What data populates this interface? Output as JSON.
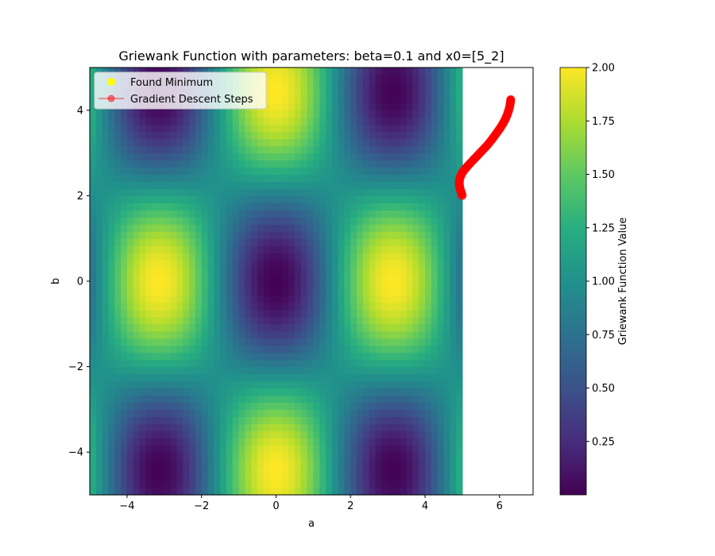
{
  "chart_data": {
    "type": "heatmap",
    "title": "Griewank Function with parameters: beta=0.1 and x0=[5_2]",
    "xlabel": "a",
    "ylabel": "b",
    "xlim": [
      -5,
      6.9
    ],
    "ylim": [
      -5,
      5
    ],
    "heatmap_x_range": [
      -5,
      5
    ],
    "heatmap_y_range": [
      -5,
      5
    ],
    "function": "1 + (a^2 + b^2)/4000 - cos(a)*cos(b/sqrt(2))",
    "colormap": "viridis",
    "x_ticks": [
      -4,
      -2,
      0,
      2,
      4,
      6
    ],
    "x_tick_labels": [
      "−4",
      "−2",
      "0",
      "2",
      "4",
      "6"
    ],
    "y_ticks": [
      -4,
      -2,
      0,
      2,
      4
    ],
    "y_tick_labels": [
      "−4",
      "−2",
      "0",
      "2",
      "4"
    ],
    "colorbar": {
      "label": "Griewank Function Value",
      "range": [
        0,
        2.0
      ],
      "ticks": [
        0.25,
        0.5,
        0.75,
        1.0,
        1.25,
        1.5,
        1.75,
        2.0
      ],
      "tick_labels": [
        "0.25",
        "0.50",
        "0.75",
        "1.00",
        "1.25",
        "1.50",
        "1.75",
        "2.00"
      ]
    },
    "legend": {
      "position": "top-left",
      "entries": [
        {
          "label": "Found Minimum",
          "color": "#ffff00",
          "marker": "o"
        },
        {
          "label": "Gradient Descent Steps",
          "color": "#ff0000",
          "marker": "o-",
          "alpha": 0.5
        }
      ]
    },
    "gradient_descent_steps": {
      "x": [
        5.0,
        4.97,
        4.94,
        4.92,
        4.92,
        4.95,
        5.0,
        5.08,
        5.18,
        5.3,
        5.42,
        5.55,
        5.68,
        5.8,
        5.9,
        6.0,
        6.08,
        6.15,
        6.2,
        6.24,
        6.27,
        6.29,
        6.3
      ],
      "y": [
        2.0,
        2.08,
        2.16,
        2.25,
        2.35,
        2.45,
        2.54,
        2.63,
        2.73,
        2.84,
        2.95,
        3.07,
        3.19,
        3.32,
        3.44,
        3.56,
        3.67,
        3.78,
        3.88,
        3.98,
        4.08,
        4.17,
        4.25
      ]
    },
    "found_minimum": {
      "x": 6.3,
      "y": 4.25
    },
    "grid": false
  }
}
